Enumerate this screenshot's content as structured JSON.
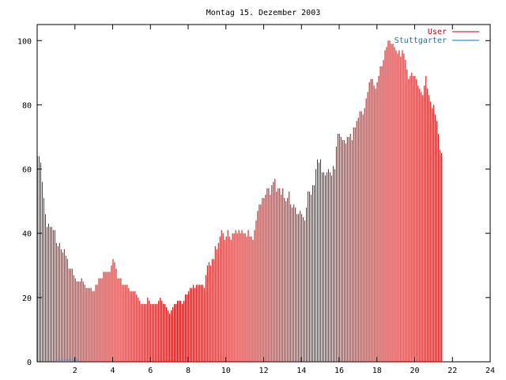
{
  "chart_data": {
    "type": "bar",
    "title": "Montag 15. Dezember 2003",
    "xlabel": "",
    "ylabel": "",
    "xlim": [
      0,
      24
    ],
    "ylim": [
      0,
      105
    ],
    "x_ticks": [
      2,
      4,
      6,
      8,
      10,
      12,
      14,
      16,
      18,
      20,
      22,
      24
    ],
    "y_ticks": [
      0,
      20,
      40,
      60,
      80,
      100
    ],
    "grid": false,
    "legend_position": "top-right",
    "colors": {
      "user": "#cc0000",
      "stuttgarter": "#0077cc",
      "axis": "#000000"
    },
    "series": [
      {
        "name": "User",
        "key": "user",
        "x_start": 0,
        "x_step": 0.0833,
        "values": [
          64,
          64,
          62,
          56,
          51,
          46,
          42,
          43,
          42,
          42,
          41,
          41,
          37,
          36,
          37,
          35,
          34,
          35,
          33,
          32,
          29,
          29,
          29,
          27,
          26,
          25,
          25,
          25,
          26,
          25,
          24,
          23,
          23,
          23,
          23,
          22,
          22,
          24,
          24,
          26,
          26,
          26,
          28,
          28,
          28,
          28,
          28,
          30,
          32,
          31,
          29,
          26,
          26,
          26,
          24,
          24,
          24,
          24,
          23,
          22,
          22,
          22,
          22,
          21,
          20,
          19,
          18,
          18,
          18,
          18,
          20,
          19,
          18,
          18,
          18,
          18,
          18,
          19,
          20,
          19,
          18,
          18,
          17,
          16,
          15,
          16,
          17,
          18,
          18,
          19,
          19,
          19,
          18,
          19,
          21,
          21,
          22,
          23,
          23,
          24,
          23,
          24,
          24,
          24,
          24,
          24,
          23,
          27,
          30,
          31,
          30,
          32,
          32,
          36,
          35,
          37,
          39,
          41,
          40,
          38,
          39,
          41,
          39,
          38,
          40,
          40,
          41,
          40,
          41,
          40,
          41,
          40,
          40,
          39,
          41,
          39,
          39,
          38,
          41,
          44,
          47,
          49,
          49,
          51,
          51,
          52,
          54,
          54,
          52,
          55,
          56,
          57,
          53,
          54,
          54,
          52,
          54,
          51,
          50,
          51,
          53,
          49,
          48,
          49,
          48,
          46,
          46,
          47,
          46,
          45,
          44,
          48,
          53,
          53,
          52,
          55,
          55,
          60,
          63,
          62,
          63,
          59,
          59,
          58,
          59,
          60,
          59,
          58,
          61,
          60,
          67,
          71,
          71,
          70,
          69,
          69,
          68,
          70,
          70,
          71,
          69,
          73,
          73,
          75,
          76,
          78,
          78,
          77,
          79,
          82,
          84,
          87,
          88,
          88,
          86,
          85,
          87,
          89,
          92,
          92,
          94,
          97,
          98,
          100,
          100,
          99,
          99,
          98,
          97,
          96,
          97,
          95,
          97,
          96,
          94,
          91,
          88,
          89,
          90,
          89,
          89,
          88,
          86,
          85,
          84,
          83,
          86,
          89,
          85,
          83,
          81,
          79,
          80,
          77,
          75,
          71,
          66,
          65
        ]
      },
      {
        "name": "Stuttgarter",
        "key": "stuttgarter",
        "x_start": 0,
        "x_step": 0.0833,
        "values": [
          0,
          0,
          0,
          0,
          0,
          0,
          0,
          0,
          0,
          0,
          0,
          0,
          1,
          1,
          1,
          1,
          1,
          1,
          1,
          1,
          1,
          1,
          1,
          1,
          1,
          1,
          1,
          0,
          0,
          0,
          0,
          0,
          0,
          0,
          0,
          0,
          0,
          0,
          0,
          0,
          0,
          0,
          0,
          0,
          0,
          0,
          0,
          0,
          0,
          0,
          0,
          0,
          0,
          0,
          0,
          0,
          0,
          0,
          0,
          0,
          0,
          0,
          0,
          0,
          0,
          0,
          0,
          0,
          0,
          0,
          0,
          0,
          0,
          0,
          0,
          0,
          0,
          0,
          0,
          0,
          0,
          0,
          0,
          0,
          0,
          0,
          0,
          0,
          0,
          0,
          0,
          0,
          0,
          0,
          0,
          0,
          0,
          0,
          0,
          0,
          0,
          0,
          0,
          0,
          0,
          0,
          0,
          0,
          0,
          0,
          0,
          0,
          0,
          0,
          0,
          0,
          0,
          0,
          0,
          0,
          0,
          0,
          0,
          0,
          0,
          0,
          0,
          0,
          0,
          0,
          0,
          0,
          0,
          0,
          0,
          0,
          0,
          0,
          0,
          0,
          0,
          0,
          0,
          0,
          0,
          0,
          0,
          0,
          0,
          0,
          0,
          0,
          0,
          0,
          0,
          0,
          0,
          0,
          0,
          0,
          0,
          0,
          0,
          0,
          0,
          0,
          0,
          0,
          0,
          0,
          0,
          0,
          0,
          0,
          0,
          0,
          0,
          0,
          0,
          0,
          0,
          0,
          0,
          0,
          0,
          0,
          0,
          0,
          0,
          0,
          0,
          0,
          0,
          0,
          0,
          0,
          0,
          0,
          0,
          0,
          0,
          0,
          0,
          0,
          0,
          0,
          0,
          0,
          0,
          0,
          0,
          0,
          0,
          0,
          0,
          0,
          0,
          0,
          0,
          0,
          0,
          0,
          0,
          0,
          0,
          0,
          0,
          0,
          0,
          0,
          0,
          0,
          0,
          0,
          0,
          0,
          0,
          0,
          0,
          0,
          0,
          0,
          0,
          0,
          0,
          0,
          0,
          0,
          0,
          0,
          0,
          0,
          0,
          0,
          0,
          0,
          0,
          0,
          0,
          0,
          0,
          0,
          0,
          0,
          0,
          0,
          0,
          0,
          0,
          0,
          0,
          0
        ]
      }
    ]
  }
}
